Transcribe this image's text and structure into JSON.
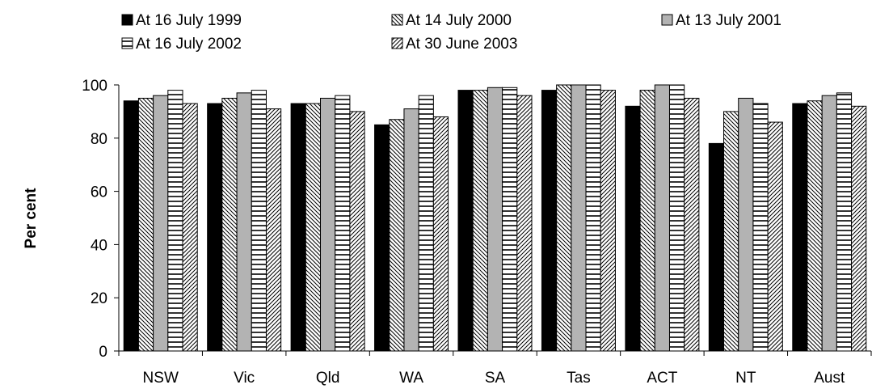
{
  "chart_data": {
    "type": "bar",
    "title": "",
    "xlabel": "",
    "ylabel": "Per cent",
    "ylim": [
      0,
      100
    ],
    "yticks": [
      0,
      20,
      40,
      60,
      80,
      100
    ],
    "grid": false,
    "legend_position": "top",
    "categories": [
      "NSW",
      "Vic",
      "Qld",
      "WA",
      "SA",
      "Tas",
      "ACT",
      "NT",
      "Aust"
    ],
    "series": [
      {
        "name": "At 16 July 1999",
        "pattern": "solid-black",
        "values": [
          94,
          93,
          93,
          85,
          98,
          98,
          92,
          78,
          93
        ]
      },
      {
        "name": "At 14 July 2000",
        "pattern": "backslash-hatch",
        "values": [
          95,
          95,
          93,
          87,
          98,
          100,
          98,
          90,
          94
        ]
      },
      {
        "name": "At 13 July 2001",
        "pattern": "solid-grey",
        "values": [
          96,
          97,
          95,
          91,
          99,
          100,
          100,
          95,
          96
        ]
      },
      {
        "name": "At 16 July 2002",
        "pattern": "horizontal-lines",
        "values": [
          98,
          98,
          96,
          96,
          99,
          100,
          100,
          93,
          97
        ]
      },
      {
        "name": "At 30 June 2003",
        "pattern": "forwardslash-hatch",
        "values": [
          93,
          91,
          90,
          88,
          96,
          98,
          95,
          86,
          92
        ]
      }
    ],
    "colors": {
      "solid-black": "#000000",
      "solid-grey": "#b3b3b3",
      "hatch": "#000000"
    }
  }
}
